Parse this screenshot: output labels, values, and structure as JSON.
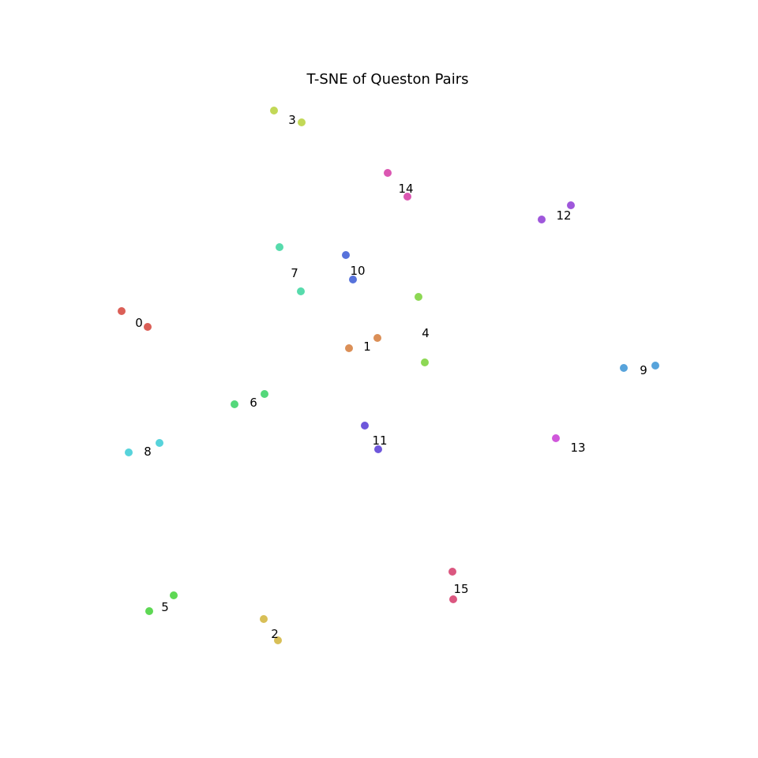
{
  "chart_data": {
    "type": "scatter",
    "title": "T-SNE of Queston Pairs",
    "xlabel": "",
    "ylabel": "",
    "axes_visible": false,
    "grid": false,
    "xlim": [
      0,
      960
    ],
    "ylim": [
      960,
      0
    ],
    "series": [
      {
        "label": "0",
        "color": "#db5f57",
        "points": [
          {
            "x": 187,
            "y": 546
          },
          {
            "x": 154,
            "y": 566
          }
        ],
        "text_pos": {
          "x": 176,
          "y": 551
        }
      },
      {
        "label": "1",
        "color": "#db8f57",
        "points": [
          {
            "x": 442,
            "y": 519
          },
          {
            "x": 478,
            "y": 532
          }
        ],
        "text_pos": {
          "x": 465,
          "y": 521
        }
      },
      {
        "label": "2",
        "color": "#d8bf57",
        "points": [
          {
            "x": 352,
            "y": 149
          },
          {
            "x": 334,
            "y": 176
          }
        ],
        "text_pos": {
          "x": 348,
          "y": 157
        }
      },
      {
        "label": "3",
        "color": "#c2d857",
        "points": [
          {
            "x": 382,
            "y": 805
          },
          {
            "x": 347,
            "y": 820
          }
        ],
        "text_pos": {
          "x": 370,
          "y": 808
        }
      },
      {
        "label": "4",
        "color": "#8dd854",
        "points": [
          {
            "x": 538,
            "y": 501
          },
          {
            "x": 530,
            "y": 584
          }
        ],
        "text_pos": {
          "x": 539,
          "y": 538
        }
      },
      {
        "label": "5",
        "color": "#5ed854",
        "points": [
          {
            "x": 189,
            "y": 186
          },
          {
            "x": 220,
            "y": 206
          }
        ],
        "text_pos": {
          "x": 209,
          "y": 191
        }
      },
      {
        "label": "6",
        "color": "#54d87b",
        "points": [
          {
            "x": 297,
            "y": 448
          },
          {
            "x": 335,
            "y": 461
          }
        ],
        "text_pos": {
          "x": 321,
          "y": 450
        }
      },
      {
        "label": "7",
        "color": "#57dbac",
        "points": [
          {
            "x": 381,
            "y": 591
          },
          {
            "x": 354,
            "y": 647
          }
        ],
        "text_pos": {
          "x": 373,
          "y": 614
        }
      },
      {
        "label": "8",
        "color": "#57d3db",
        "points": [
          {
            "x": 163,
            "y": 387
          },
          {
            "x": 202,
            "y": 399
          }
        ],
        "text_pos": {
          "x": 187,
          "y": 388
        }
      },
      {
        "label": "9",
        "color": "#57a3db",
        "points": [
          {
            "x": 790,
            "y": 494
          },
          {
            "x": 830,
            "y": 497
          }
        ],
        "text_pos": {
          "x": 815,
          "y": 491
        }
      },
      {
        "label": "10",
        "color": "#5772db",
        "points": [
          {
            "x": 447,
            "y": 606
          },
          {
            "x": 438,
            "y": 637
          }
        ],
        "text_pos": {
          "x": 453,
          "y": 617
        }
      },
      {
        "label": "11",
        "color": "#6e57db",
        "points": [
          {
            "x": 479,
            "y": 391
          },
          {
            "x": 462,
            "y": 421
          }
        ],
        "text_pos": {
          "x": 481,
          "y": 402
        }
      },
      {
        "label": "12",
        "color": "#9f57db",
        "points": [
          {
            "x": 686,
            "y": 682
          },
          {
            "x": 723,
            "y": 700
          }
        ],
        "text_pos": {
          "x": 714,
          "y": 687
        }
      },
      {
        "label": "13",
        "color": "#d057db",
        "points": [
          {
            "x": 704,
            "y": 405
          }
        ],
        "text_pos": {
          "x": 732,
          "y": 393
        }
      },
      {
        "label": "14",
        "color": "#db57b2",
        "points": [
          {
            "x": 516,
            "y": 711
          },
          {
            "x": 491,
            "y": 741
          }
        ],
        "text_pos": {
          "x": 514,
          "y": 721
        }
      },
      {
        "label": "15",
        "color": "#db5780",
        "points": [
          {
            "x": 574,
            "y": 201
          },
          {
            "x": 573,
            "y": 236
          }
        ],
        "text_pos": {
          "x": 584,
          "y": 214
        }
      }
    ]
  }
}
